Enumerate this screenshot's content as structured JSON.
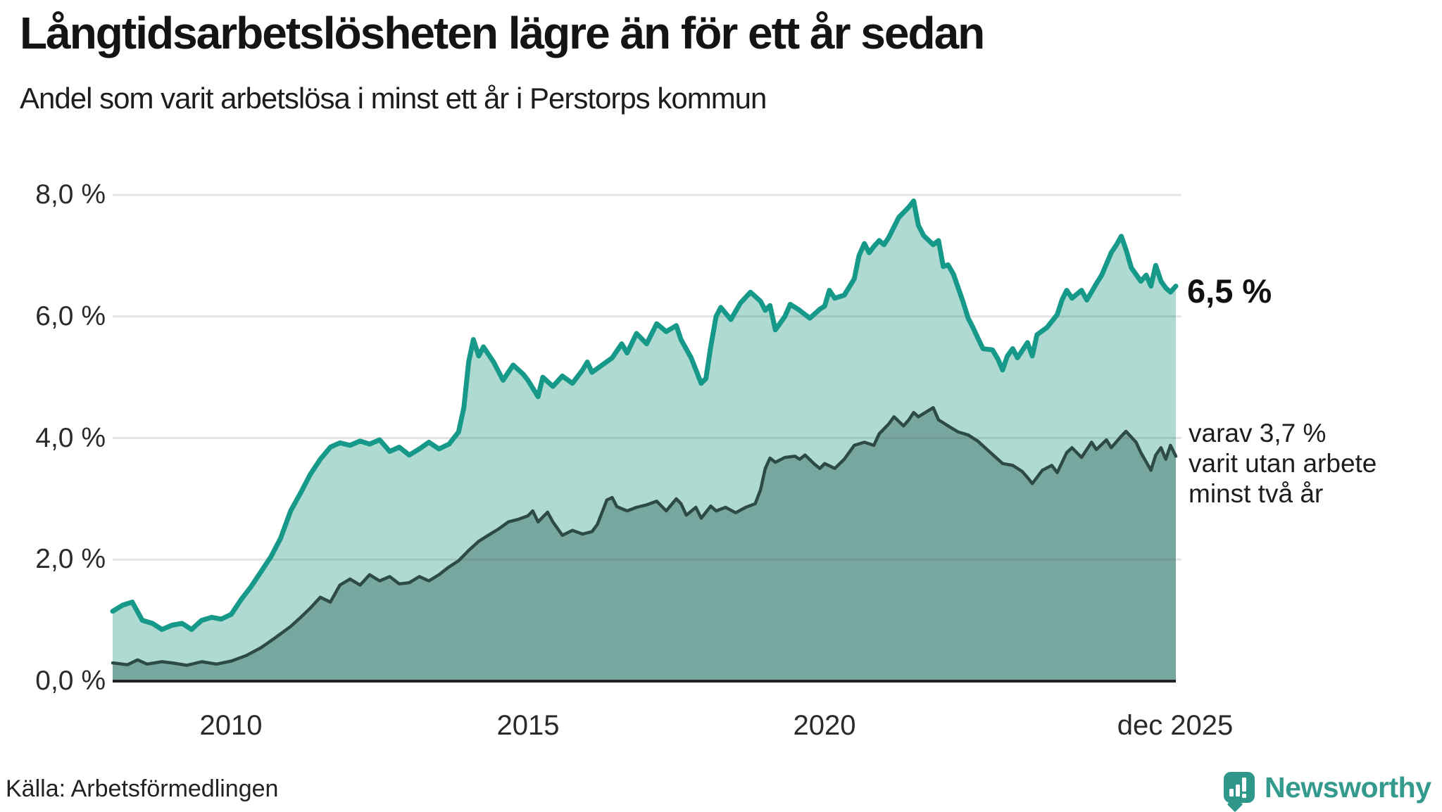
{
  "header": {
    "title": "Långtidsarbetslösheten lägre än för ett år sedan",
    "subtitle": "Andel som varit arbetslösa i minst ett år i Perstorps kommun"
  },
  "footer": {
    "source": "Källa: Arbetsförmedlingen",
    "brand_name": "Newsworthy",
    "brand_icon": "bar-chart-speech-bubble-icon",
    "brand_color": "#2e978a"
  },
  "chart_data": {
    "type": "area",
    "title": "Långtidsarbetslösheten lägre än för ett år sedan",
    "subtitle": "Andel som varit arbetslösa i minst ett år i Perstorps kommun",
    "unit": "percent",
    "grid": true,
    "x_axis": {
      "range": [
        2008.0,
        2025.92
      ],
      "ticks": [
        "2010",
        "2015",
        "2020",
        "dec 2025"
      ],
      "tick_positions": [
        2010,
        2015,
        2020,
        2025.92
      ]
    },
    "y_axis": {
      "range": [
        0,
        8
      ],
      "ticks": [
        "0,0 %",
        "2,0 %",
        "4,0 %",
        "6,0 %",
        "8,0 %"
      ],
      "tick_values": [
        0,
        2,
        4,
        6,
        8
      ]
    },
    "annotations": {
      "end_label_primary": "6,5 %",
      "end_label_secondary_lines": [
        "varav 3,7 %",
        "varit utan arbete",
        "minst två år"
      ]
    },
    "colors": {
      "series1_line": "#17998a",
      "series1_fill": "#aedad2",
      "series2_line": "#2e4a45",
      "series2_fill": "#78a79f",
      "baseline": "#222222",
      "gridline_rgba": "rgba(80,90,95,0.16)"
    },
    "series": [
      {
        "name": "Andel arbetslösa minst ett år",
        "last_value": "6,5 %",
        "points": [
          [
            2008.0,
            1.15
          ],
          [
            2008.17,
            1.25
          ],
          [
            2008.33,
            1.3
          ],
          [
            2008.5,
            1.0
          ],
          [
            2008.67,
            0.95
          ],
          [
            2008.83,
            0.85
          ],
          [
            2009.0,
            0.92
          ],
          [
            2009.17,
            0.95
          ],
          [
            2009.33,
            0.85
          ],
          [
            2009.5,
            1.0
          ],
          [
            2009.67,
            1.05
          ],
          [
            2009.83,
            1.02
          ],
          [
            2010.0,
            1.1
          ],
          [
            2010.17,
            1.35
          ],
          [
            2010.33,
            1.55
          ],
          [
            2010.5,
            1.8
          ],
          [
            2010.67,
            2.05
          ],
          [
            2010.83,
            2.35
          ],
          [
            2011.0,
            2.8
          ],
          [
            2011.17,
            3.1
          ],
          [
            2011.33,
            3.4
          ],
          [
            2011.5,
            3.65
          ],
          [
            2011.67,
            3.85
          ],
          [
            2011.83,
            3.92
          ],
          [
            2012.0,
            3.88
          ],
          [
            2012.17,
            3.95
          ],
          [
            2012.33,
            3.9
          ],
          [
            2012.5,
            3.97
          ],
          [
            2012.67,
            3.78
          ],
          [
            2012.83,
            3.85
          ],
          [
            2013.0,
            3.72
          ],
          [
            2013.17,
            3.82
          ],
          [
            2013.33,
            3.93
          ],
          [
            2013.5,
            3.82
          ],
          [
            2013.67,
            3.9
          ],
          [
            2013.83,
            4.1
          ],
          [
            2013.92,
            4.5
          ],
          [
            2014.0,
            5.25
          ],
          [
            2014.08,
            5.62
          ],
          [
            2014.17,
            5.35
          ],
          [
            2014.25,
            5.5
          ],
          [
            2014.42,
            5.25
          ],
          [
            2014.58,
            4.95
          ],
          [
            2014.75,
            5.2
          ],
          [
            2014.92,
            5.05
          ],
          [
            2015.0,
            4.95
          ],
          [
            2015.17,
            4.68
          ],
          [
            2015.25,
            5.0
          ],
          [
            2015.42,
            4.85
          ],
          [
            2015.58,
            5.02
          ],
          [
            2015.75,
            4.9
          ],
          [
            2015.92,
            5.12
          ],
          [
            2016.0,
            5.25
          ],
          [
            2016.08,
            5.08
          ],
          [
            2016.25,
            5.2
          ],
          [
            2016.42,
            5.32
          ],
          [
            2016.58,
            5.55
          ],
          [
            2016.67,
            5.4
          ],
          [
            2016.83,
            5.72
          ],
          [
            2017.0,
            5.55
          ],
          [
            2017.17,
            5.88
          ],
          [
            2017.33,
            5.75
          ],
          [
            2017.5,
            5.85
          ],
          [
            2017.58,
            5.62
          ],
          [
            2017.75,
            5.32
          ],
          [
            2017.92,
            4.9
          ],
          [
            2018.0,
            4.98
          ],
          [
            2018.08,
            5.5
          ],
          [
            2018.17,
            6.0
          ],
          [
            2018.25,
            6.15
          ],
          [
            2018.42,
            5.95
          ],
          [
            2018.58,
            6.22
          ],
          [
            2018.75,
            6.4
          ],
          [
            2018.92,
            6.25
          ],
          [
            2019.0,
            6.1
          ],
          [
            2019.08,
            6.18
          ],
          [
            2019.17,
            5.78
          ],
          [
            2019.33,
            6.0
          ],
          [
            2019.42,
            6.2
          ],
          [
            2019.58,
            6.1
          ],
          [
            2019.75,
            5.97
          ],
          [
            2019.92,
            6.12
          ],
          [
            2020.0,
            6.17
          ],
          [
            2020.08,
            6.43
          ],
          [
            2020.17,
            6.3
          ],
          [
            2020.33,
            6.35
          ],
          [
            2020.5,
            6.62
          ],
          [
            2020.58,
            7.0
          ],
          [
            2020.67,
            7.2
          ],
          [
            2020.75,
            7.05
          ],
          [
            2020.83,
            7.15
          ],
          [
            2020.92,
            7.25
          ],
          [
            2021.0,
            7.18
          ],
          [
            2021.08,
            7.3
          ],
          [
            2021.25,
            7.63
          ],
          [
            2021.42,
            7.8
          ],
          [
            2021.5,
            7.9
          ],
          [
            2021.58,
            7.5
          ],
          [
            2021.67,
            7.33
          ],
          [
            2021.83,
            7.18
          ],
          [
            2021.92,
            7.25
          ],
          [
            2022.0,
            6.82
          ],
          [
            2022.08,
            6.85
          ],
          [
            2022.17,
            6.7
          ],
          [
            2022.33,
            6.25
          ],
          [
            2022.42,
            5.97
          ],
          [
            2022.5,
            5.82
          ],
          [
            2022.58,
            5.65
          ],
          [
            2022.67,
            5.47
          ],
          [
            2022.83,
            5.45
          ],
          [
            2022.92,
            5.3
          ],
          [
            2023.0,
            5.12
          ],
          [
            2023.08,
            5.35
          ],
          [
            2023.17,
            5.47
          ],
          [
            2023.25,
            5.32
          ],
          [
            2023.42,
            5.57
          ],
          [
            2023.5,
            5.35
          ],
          [
            2023.58,
            5.7
          ],
          [
            2023.75,
            5.82
          ],
          [
            2023.92,
            6.03
          ],
          [
            2024.0,
            6.27
          ],
          [
            2024.08,
            6.43
          ],
          [
            2024.17,
            6.3
          ],
          [
            2024.33,
            6.43
          ],
          [
            2024.42,
            6.27
          ],
          [
            2024.58,
            6.54
          ],
          [
            2024.67,
            6.68
          ],
          [
            2024.83,
            7.05
          ],
          [
            2024.92,
            7.18
          ],
          [
            2025.0,
            7.32
          ],
          [
            2025.08,
            7.1
          ],
          [
            2025.17,
            6.8
          ],
          [
            2025.33,
            6.58
          ],
          [
            2025.42,
            6.68
          ],
          [
            2025.5,
            6.5
          ],
          [
            2025.58,
            6.84
          ],
          [
            2025.67,
            6.58
          ],
          [
            2025.75,
            6.47
          ],
          [
            2025.83,
            6.4
          ],
          [
            2025.92,
            6.5
          ]
        ]
      },
      {
        "name": "varav utan arbete minst två år",
        "last_value": "3,7 %",
        "points": [
          [
            2008.0,
            0.3
          ],
          [
            2008.25,
            0.27
          ],
          [
            2008.42,
            0.35
          ],
          [
            2008.58,
            0.28
          ],
          [
            2008.83,
            0.32
          ],
          [
            2009.0,
            0.3
          ],
          [
            2009.25,
            0.26
          ],
          [
            2009.5,
            0.32
          ],
          [
            2009.75,
            0.28
          ],
          [
            2010.0,
            0.33
          ],
          [
            2010.25,
            0.42
          ],
          [
            2010.5,
            0.55
          ],
          [
            2010.75,
            0.72
          ],
          [
            2011.0,
            0.9
          ],
          [
            2011.17,
            1.05
          ],
          [
            2011.33,
            1.2
          ],
          [
            2011.5,
            1.38
          ],
          [
            2011.67,
            1.3
          ],
          [
            2011.83,
            1.58
          ],
          [
            2012.0,
            1.68
          ],
          [
            2012.17,
            1.58
          ],
          [
            2012.33,
            1.75
          ],
          [
            2012.5,
            1.65
          ],
          [
            2012.67,
            1.72
          ],
          [
            2012.83,
            1.6
          ],
          [
            2013.0,
            1.62
          ],
          [
            2013.17,
            1.72
          ],
          [
            2013.33,
            1.65
          ],
          [
            2013.5,
            1.75
          ],
          [
            2013.67,
            1.88
          ],
          [
            2013.83,
            1.98
          ],
          [
            2014.0,
            2.15
          ],
          [
            2014.17,
            2.3
          ],
          [
            2014.33,
            2.4
          ],
          [
            2014.5,
            2.5
          ],
          [
            2014.67,
            2.62
          ],
          [
            2014.83,
            2.66
          ],
          [
            2015.0,
            2.72
          ],
          [
            2015.08,
            2.8
          ],
          [
            2015.17,
            2.62
          ],
          [
            2015.33,
            2.78
          ],
          [
            2015.42,
            2.62
          ],
          [
            2015.58,
            2.4
          ],
          [
            2015.75,
            2.48
          ],
          [
            2015.92,
            2.42
          ],
          [
            2016.08,
            2.46
          ],
          [
            2016.17,
            2.58
          ],
          [
            2016.33,
            2.98
          ],
          [
            2016.42,
            3.02
          ],
          [
            2016.5,
            2.87
          ],
          [
            2016.67,
            2.8
          ],
          [
            2016.83,
            2.86
          ],
          [
            2017.0,
            2.9
          ],
          [
            2017.17,
            2.96
          ],
          [
            2017.33,
            2.8
          ],
          [
            2017.5,
            3.0
          ],
          [
            2017.58,
            2.92
          ],
          [
            2017.67,
            2.73
          ],
          [
            2017.83,
            2.86
          ],
          [
            2017.92,
            2.68
          ],
          [
            2018.08,
            2.88
          ],
          [
            2018.17,
            2.8
          ],
          [
            2018.33,
            2.86
          ],
          [
            2018.5,
            2.77
          ],
          [
            2018.67,
            2.86
          ],
          [
            2018.83,
            2.92
          ],
          [
            2018.92,
            3.15
          ],
          [
            2019.0,
            3.5
          ],
          [
            2019.08,
            3.67
          ],
          [
            2019.17,
            3.6
          ],
          [
            2019.33,
            3.68
          ],
          [
            2019.5,
            3.7
          ],
          [
            2019.58,
            3.65
          ],
          [
            2019.67,
            3.72
          ],
          [
            2019.83,
            3.57
          ],
          [
            2019.92,
            3.5
          ],
          [
            2020.0,
            3.58
          ],
          [
            2020.17,
            3.5
          ],
          [
            2020.33,
            3.65
          ],
          [
            2020.5,
            3.88
          ],
          [
            2020.67,
            3.93
          ],
          [
            2020.83,
            3.88
          ],
          [
            2020.92,
            4.07
          ],
          [
            2021.08,
            4.23
          ],
          [
            2021.17,
            4.35
          ],
          [
            2021.33,
            4.2
          ],
          [
            2021.42,
            4.3
          ],
          [
            2021.5,
            4.42
          ],
          [
            2021.58,
            4.35
          ],
          [
            2021.75,
            4.45
          ],
          [
            2021.83,
            4.5
          ],
          [
            2021.92,
            4.3
          ],
          [
            2022.08,
            4.2
          ],
          [
            2022.25,
            4.1
          ],
          [
            2022.42,
            4.05
          ],
          [
            2022.58,
            3.95
          ],
          [
            2022.75,
            3.8
          ],
          [
            2022.92,
            3.65
          ],
          [
            2023.0,
            3.58
          ],
          [
            2023.17,
            3.55
          ],
          [
            2023.33,
            3.45
          ],
          [
            2023.42,
            3.35
          ],
          [
            2023.5,
            3.25
          ],
          [
            2023.67,
            3.47
          ],
          [
            2023.83,
            3.55
          ],
          [
            2023.92,
            3.43
          ],
          [
            2024.08,
            3.76
          ],
          [
            2024.17,
            3.84
          ],
          [
            2024.33,
            3.68
          ],
          [
            2024.5,
            3.93
          ],
          [
            2024.58,
            3.81
          ],
          [
            2024.75,
            3.97
          ],
          [
            2024.83,
            3.84
          ],
          [
            2025.0,
            4.03
          ],
          [
            2025.08,
            4.11
          ],
          [
            2025.25,
            3.93
          ],
          [
            2025.33,
            3.76
          ],
          [
            2025.5,
            3.47
          ],
          [
            2025.58,
            3.72
          ],
          [
            2025.67,
            3.84
          ],
          [
            2025.75,
            3.65
          ],
          [
            2025.83,
            3.88
          ],
          [
            2025.92,
            3.7
          ]
        ]
      }
    ]
  }
}
